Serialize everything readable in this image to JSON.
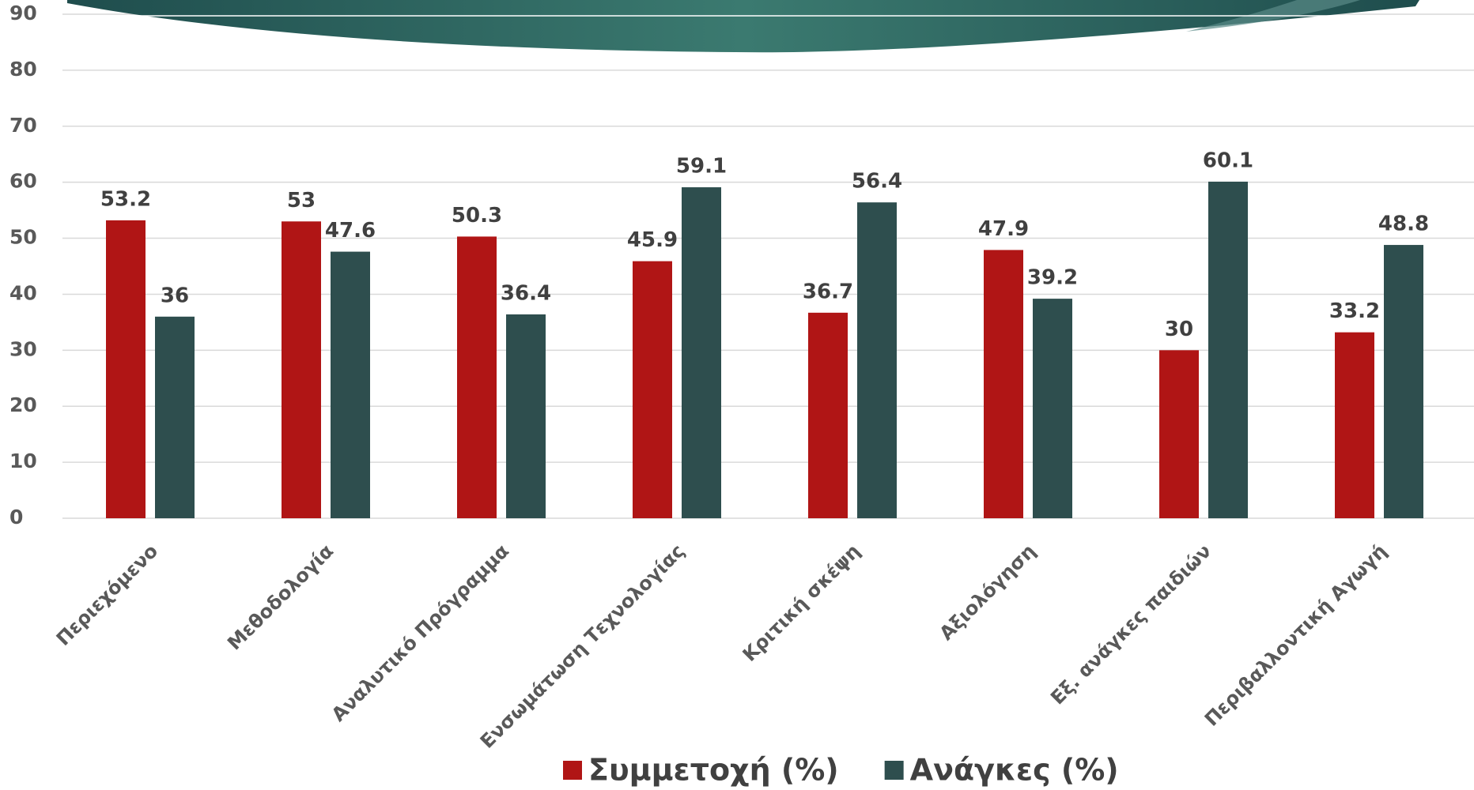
{
  "chart_data": {
    "type": "bar",
    "categories": [
      "Περιεχόμενο",
      "Μεθοδολογία",
      "Αναλυτικό Πρόγραμμα",
      "Ενσωμάτωση Τεχνολογίας",
      "Κριτική σκέψη",
      "Αξιολόγηση",
      "Εξ. ανάγκες παιδιών",
      "Περιβαλλοντική Αγωγή"
    ],
    "series": [
      {
        "name": "Συμμετοχή (%)",
        "color": "#b01515",
        "values": [
          53.2,
          53,
          50.3,
          45.9,
          36.7,
          47.9,
          30,
          33.2
        ]
      },
      {
        "name": "Ανάγκες (%)",
        "color": "#2e4e4e",
        "values": [
          36,
          47.6,
          36.4,
          59.1,
          56.4,
          39.2,
          60.1,
          48.8
        ]
      }
    ],
    "ylim": [
      0,
      90
    ],
    "yticks": [
      0,
      10,
      20,
      30,
      40,
      50,
      60,
      70,
      80,
      90
    ],
    "grid": true,
    "legend": "bottom"
  }
}
